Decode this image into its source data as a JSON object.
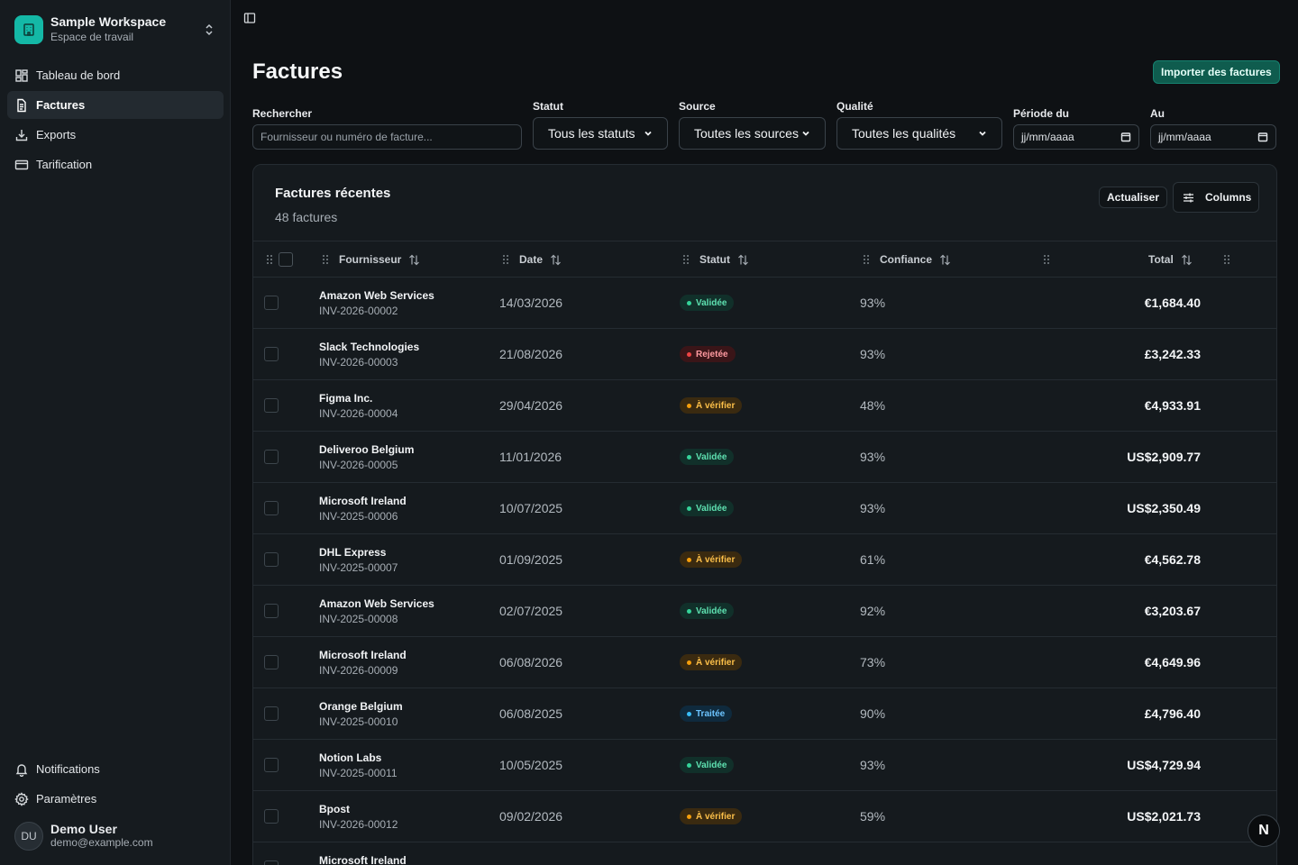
{
  "workspace": {
    "name": "Sample Workspace",
    "subtitle": "Espace de travail"
  },
  "nav": {
    "items": [
      {
        "label": "Tableau de bord",
        "icon": "dashboard-icon"
      },
      {
        "label": "Factures",
        "icon": "document-icon",
        "active": true
      },
      {
        "label": "Exports",
        "icon": "download-icon"
      },
      {
        "label": "Tarification",
        "icon": "credit-card-icon"
      }
    ],
    "bottom": [
      {
        "label": "Notifications",
        "icon": "bell-icon"
      },
      {
        "label": "Paramètres",
        "icon": "gear-icon"
      }
    ]
  },
  "user": {
    "initials": "DU",
    "name": "Demo User",
    "email": "demo@example.com"
  },
  "page": {
    "title": "Factures",
    "import_label": "Importer des factures"
  },
  "filters": {
    "search_label": "Rechercher",
    "search_placeholder": "Fournisseur ou numéro de facture...",
    "status_label": "Statut",
    "status_value": "Tous les statuts",
    "source_label": "Source",
    "source_value": "Toutes les sources",
    "quality_label": "Qualité",
    "quality_value": "Toutes les qualités",
    "from_label": "Période du",
    "from_value": "jj/mm/aaaa",
    "to_label": "Au",
    "to_value": "jj/mm/aaaa"
  },
  "card": {
    "title": "Factures récentes",
    "count": "48 factures",
    "refresh_label": "Actualiser",
    "columns_label": "Columns"
  },
  "table": {
    "headers": {
      "vendor": "Fournisseur",
      "date": "Date",
      "status": "Statut",
      "confidence": "Confiance",
      "total": "Total"
    },
    "rows": [
      {
        "vendor": "Amazon Web Services",
        "number": "INV-2026-00002",
        "date": "14/03/2026",
        "status": "Validée",
        "kind": "valid",
        "confidence": "93%",
        "total": "€1,684.40"
      },
      {
        "vendor": "Slack Technologies",
        "number": "INV-2026-00003",
        "date": "21/08/2026",
        "status": "Rejetée",
        "kind": "rej",
        "confidence": "93%",
        "total": "£3,242.33"
      },
      {
        "vendor": "Figma Inc.",
        "number": "INV-2026-00004",
        "date": "29/04/2026",
        "status": "À vérifier",
        "kind": "rev",
        "confidence": "48%",
        "total": "€4,933.91"
      },
      {
        "vendor": "Deliveroo Belgium",
        "number": "INV-2026-00005",
        "date": "11/01/2026",
        "status": "Validée",
        "kind": "valid",
        "confidence": "93%",
        "total": "US$2,909.77"
      },
      {
        "vendor": "Microsoft Ireland",
        "number": "INV-2025-00006",
        "date": "10/07/2025",
        "status": "Validée",
        "kind": "valid",
        "confidence": "93%",
        "total": "US$2,350.49"
      },
      {
        "vendor": "DHL Express",
        "number": "INV-2025-00007",
        "date": "01/09/2025",
        "status": "À vérifier",
        "kind": "rev",
        "confidence": "61%",
        "total": "€4,562.78"
      },
      {
        "vendor": "Amazon Web Services",
        "number": "INV-2025-00008",
        "date": "02/07/2025",
        "status": "Validée",
        "kind": "valid",
        "confidence": "92%",
        "total": "€3,203.67"
      },
      {
        "vendor": "Microsoft Ireland",
        "number": "INV-2026-00009",
        "date": "06/08/2026",
        "status": "À vérifier",
        "kind": "rev",
        "confidence": "73%",
        "total": "€4,649.96"
      },
      {
        "vendor": "Orange Belgium",
        "number": "INV-2025-00010",
        "date": "06/08/2025",
        "status": "Traitée",
        "kind": "proc",
        "confidence": "90%",
        "total": "£4,796.40"
      },
      {
        "vendor": "Notion Labs",
        "number": "INV-2025-00011",
        "date": "10/05/2025",
        "status": "Validée",
        "kind": "valid",
        "confidence": "93%",
        "total": "US$4,729.94"
      },
      {
        "vendor": "Bpost",
        "number": "INV-2026-00012",
        "date": "09/02/2026",
        "status": "À vérifier",
        "kind": "rev",
        "confidence": "59%",
        "total": "US$2,021.73"
      },
      {
        "vendor": "Microsoft Ireland",
        "number": "",
        "date": "",
        "status": "",
        "kind": "valid",
        "confidence": "",
        "total": ""
      }
    ]
  },
  "fab_label": "N",
  "colors": {
    "accent": "#14b8a6",
    "background": "#0e1114",
    "sidebar": "#161b1f"
  }
}
